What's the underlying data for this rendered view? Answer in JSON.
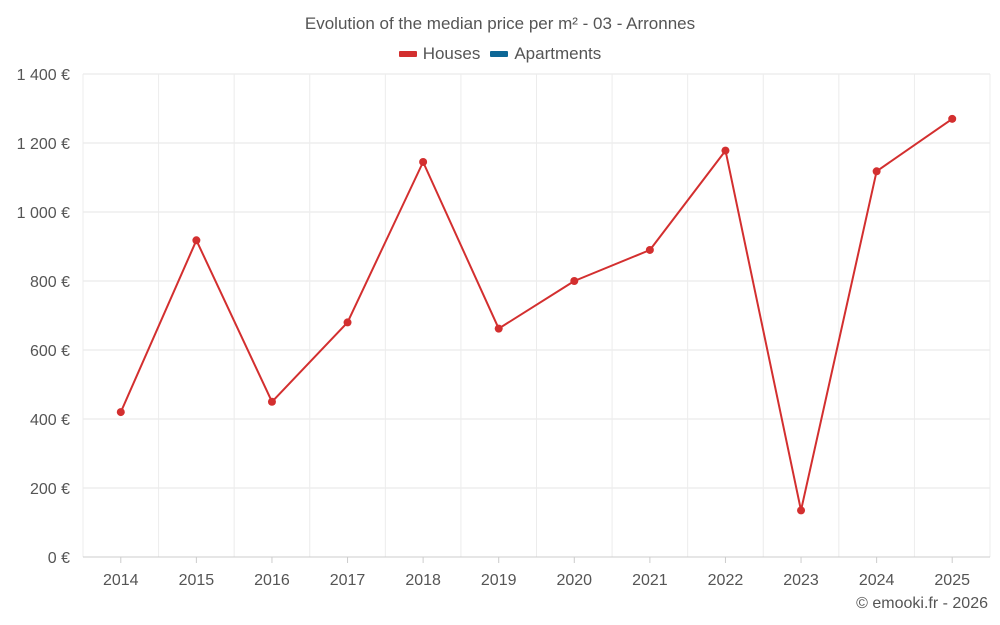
{
  "chart_data": {
    "type": "line",
    "title": "Evolution of the median price per m² - 03 - Arronnes",
    "legend": [
      {
        "name": "Houses",
        "color": "#d32f2f"
      },
      {
        "name": "Apartments",
        "color": "#0d6796"
      }
    ],
    "categories": [
      "2014",
      "2015",
      "2016",
      "2017",
      "2018",
      "2019",
      "2020",
      "2021",
      "2022",
      "2023",
      "2024",
      "2025"
    ],
    "series": [
      {
        "name": "Houses",
        "color": "#d32f2f",
        "values": [
          420,
          918,
          450,
          680,
          1145,
          662,
          800,
          890,
          1178,
          135,
          1118,
          1270
        ]
      }
    ],
    "ylim": [
      0,
      1400
    ],
    "yticks": [
      0,
      200,
      400,
      600,
      800,
      1000,
      1200,
      1400
    ],
    "ytick_labels": [
      "0 €",
      "200 €",
      "400 €",
      "600 €",
      "800 €",
      "1 000 €",
      "1 200 €",
      "1 400 €"
    ],
    "grid": true,
    "legend_position": "top-center"
  },
  "credit": "© emooki.fr - 2026"
}
